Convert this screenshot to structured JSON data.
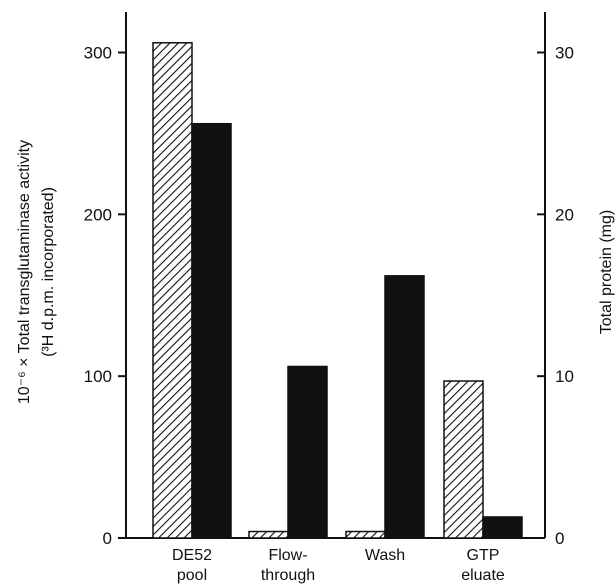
{
  "chart_data": {
    "type": "bar",
    "categories": [
      [
        "DE52",
        "pool"
      ],
      [
        "Flow-",
        "through"
      ],
      [
        "Wash"
      ],
      [
        "GTP",
        "eluate"
      ]
    ],
    "series": [
      {
        "axis": "left",
        "pattern": "hatched",
        "values": [
          306,
          4,
          4,
          97
        ]
      },
      {
        "axis": "right",
        "pattern": "solid",
        "values": [
          25.6,
          10.6,
          16.2,
          1.3
        ]
      }
    ],
    "left_axis": {
      "label_line1": "10⁻⁶ × Total transglutaminase activity",
      "label_line2": "(³H d.p.m. incorporated)",
      "ylim": [
        0,
        310
      ],
      "ticks": [
        0,
        100,
        200,
        300
      ]
    },
    "right_axis": {
      "label": "Total protein (mg)",
      "ylim": [
        0,
        31
      ],
      "ticks": [
        0,
        10,
        20,
        30
      ]
    },
    "grid": false,
    "legend": "none",
    "colors": {
      "bar": "#111111",
      "hatch": "#111111",
      "background": "#ffffff"
    }
  }
}
